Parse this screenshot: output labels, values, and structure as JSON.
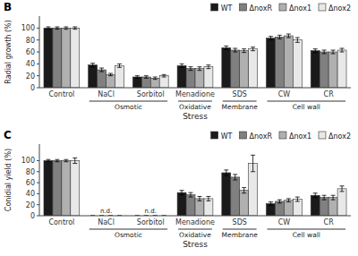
{
  "chart_data": [
    {
      "type": "bar",
      "title": "B",
      "ylabel": "Radial growth (%)",
      "xlabel": "Stress",
      "categories": [
        "Control",
        "NaCl",
        "Sorbitol",
        "Menadione",
        "SDS",
        "CW",
        "CR"
      ],
      "series": [
        {
          "name": "WT",
          "color": "#1a1a1a",
          "values": [
            100,
            38,
            18,
            37,
            67,
            83,
            62
          ],
          "errors": [
            2,
            3,
            2,
            3,
            3,
            3,
            3
          ]
        },
        {
          "name": "ΔnoxR",
          "color": "#808080",
          "values": [
            100,
            30,
            18,
            32,
            63,
            85,
            60
          ],
          "errors": [
            2,
            3,
            2,
            3,
            3,
            3,
            3
          ]
        },
        {
          "name": "Δnox1",
          "color": "#b0b0b0",
          "values": [
            100,
            22,
            16,
            32,
            62,
            87,
            60
          ],
          "errors": [
            2,
            2,
            2,
            3,
            3,
            3,
            3
          ]
        },
        {
          "name": "Δnox2",
          "color": "#e8e8e8",
          "values": [
            100,
            37,
            20,
            35,
            65,
            80,
            63
          ],
          "errors": [
            2,
            3,
            2,
            3,
            3,
            4,
            3
          ]
        }
      ],
      "ylim": [
        0,
        120
      ],
      "yticks": [
        0,
        20,
        40,
        60,
        80,
        100
      ],
      "groups": [
        {
          "label": "Osmotic",
          "categories": [
            "NaCl",
            "Sorbitol"
          ]
        },
        {
          "label": "Oxidative",
          "categories": [
            "Menadione"
          ]
        },
        {
          "label": "Membrane",
          "categories": [
            "SDS"
          ]
        },
        {
          "label": "Cell wall",
          "categories": [
            "CW",
            "CR"
          ]
        }
      ],
      "legend": "upper right",
      "grid": false
    },
    {
      "type": "bar",
      "title": "C",
      "ylabel": "Conidial yield (%)",
      "xlabel": "Stress",
      "categories": [
        "Control",
        "NaCl",
        "Sorbitol",
        "Menadione",
        "SDS",
        "CW",
        "CR"
      ],
      "series": [
        {
          "name": "WT",
          "color": "#1a1a1a",
          "values": [
            100,
            0,
            0,
            42,
            78,
            22,
            37
          ],
          "errors": [
            2,
            0,
            0,
            4,
            5,
            3,
            4
          ]
        },
        {
          "name": "ΔnoxR",
          "color": "#808080",
          "values": [
            100,
            0,
            0,
            38,
            70,
            26,
            33
          ],
          "errors": [
            2,
            0,
            0,
            4,
            5,
            3,
            4
          ]
        },
        {
          "name": "Δnox1",
          "color": "#b0b0b0",
          "values": [
            100,
            0,
            0,
            31,
            46,
            28,
            33
          ],
          "errors": [
            2,
            0,
            0,
            4,
            5,
            3,
            4
          ]
        },
        {
          "name": "Δnox2",
          "color": "#e8e8e8",
          "values": [
            100,
            0,
            0,
            31,
            95,
            30,
            49
          ],
          "errors": [
            5,
            0,
            0,
            4,
            15,
            4,
            5
          ]
        }
      ],
      "ylim": [
        0,
        130
      ],
      "yticks": [
        0,
        20,
        40,
        60,
        80,
        100
      ],
      "groups": [
        {
          "label": "Osmotic",
          "categories": [
            "NaCl",
            "Sorbitol"
          ]
        },
        {
          "label": "Oxidative",
          "categories": [
            "Menadione"
          ]
        },
        {
          "label": "Membrane",
          "categories": [
            "SDS"
          ]
        },
        {
          "label": "Cell wall",
          "categories": [
            "CW",
            "CR"
          ]
        }
      ],
      "annotations": [
        {
          "text": "n.d.",
          "category": "NaCl"
        },
        {
          "text": "n.d.",
          "category": "Sorbitol"
        }
      ],
      "legend": "upper right",
      "grid": false
    }
  ]
}
